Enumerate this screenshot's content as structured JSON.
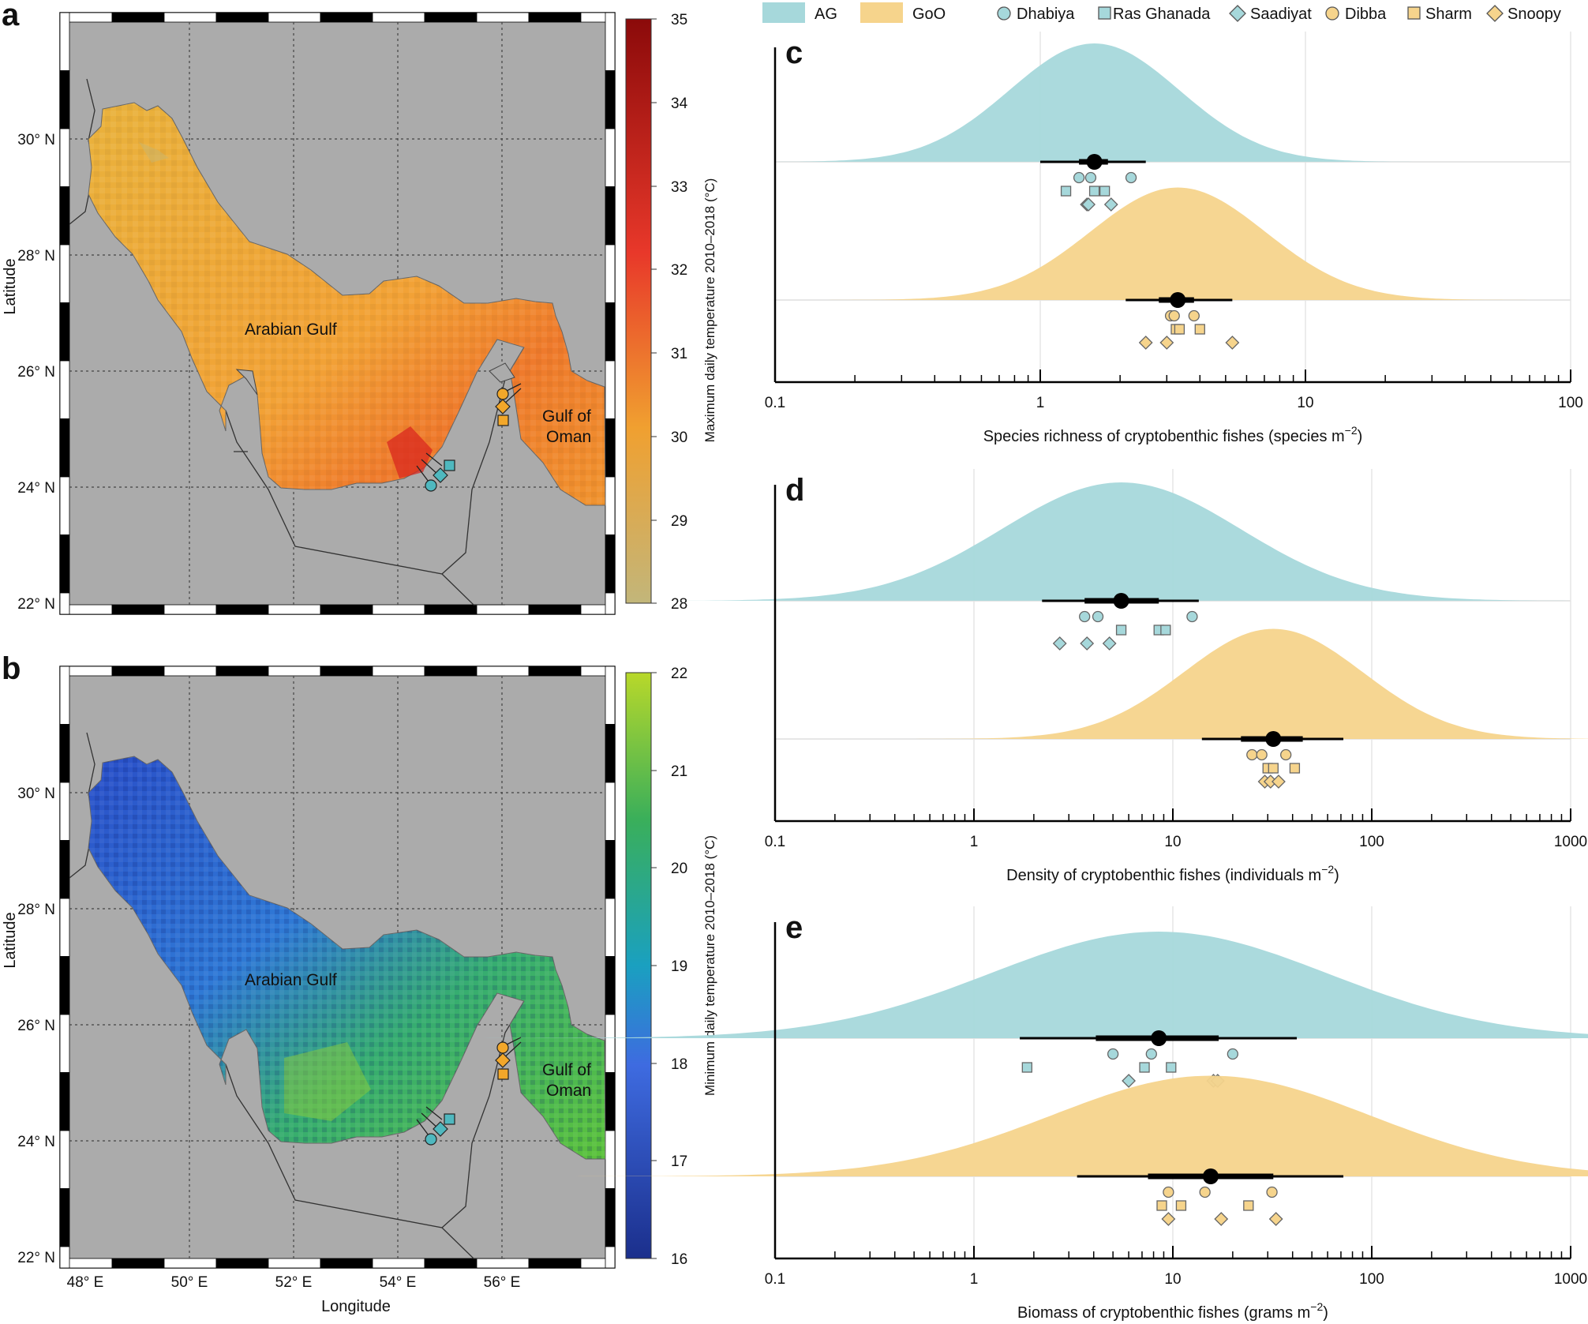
{
  "figure": {
    "panels": {
      "a": "a",
      "b": "b",
      "c": "c",
      "d": "d",
      "e": "e"
    },
    "legend": {
      "regions": [
        {
          "name": "AG",
          "color": "#a6d8db"
        },
        {
          "name": "GoO",
          "color": "#f6d48c"
        }
      ],
      "sites": [
        {
          "name": "Dhabiya",
          "shape": "circle"
        },
        {
          "name": "Ras Ghanada",
          "shape": "square"
        },
        {
          "name": "Saadiyat",
          "shape": "diamond"
        },
        {
          "name": "Dibba",
          "shape": "circle"
        },
        {
          "name": "Sharm",
          "shape": "square"
        },
        {
          "name": "Snoopy",
          "shape": "diamond"
        }
      ]
    },
    "maps": {
      "lat_ticks": [
        "30° N",
        "28° N",
        "26° N",
        "24° N",
        "22° N"
      ],
      "lon_ticks": [
        "48° E",
        "50° E",
        "52° E",
        "54° E",
        "56° E"
      ],
      "xlabel": "Longitude",
      "ylabel": "Latitude",
      "region_labels": {
        "ag": "Arabian Gulf",
        "goo_1": "Gulf of",
        "goo_2": "Oman"
      },
      "a": {
        "colorbar_title": "Maximum daily temperature 2010–2018 (°C)",
        "colorbar_ticks": [
          "35",
          "34",
          "33",
          "32",
          "31",
          "30",
          "29",
          "28"
        ],
        "colors": {
          "low": "#c2b67a",
          "mid": "#f0a030",
          "high": "#8b0a0a"
        }
      },
      "b": {
        "colorbar_title": "Minimum daily temperature 2010–2018 (°C)",
        "colorbar_ticks": [
          "22",
          "21",
          "20",
          "19",
          "18",
          "17",
          "16"
        ],
        "colors": {
          "low": "#1b2f8c",
          "mid": "#1aa0c0",
          "high": "#b8d82a"
        }
      }
    }
  },
  "chart_data": [
    {
      "type": "scatter",
      "panel": "c",
      "title": "",
      "xlabel": "Species richness of cryptobenthic fishes (species m",
      "xlabel_exp": "−2",
      "xlabel_tail": ")",
      "xscale": "log",
      "xlim": [
        0.1,
        100
      ],
      "ticks": [
        {
          "v": 0.1,
          "label": "0.1"
        },
        {
          "v": 1,
          "label": "1"
        },
        {
          "v": 10,
          "label": "10"
        },
        {
          "v": 100,
          "label": "100"
        }
      ],
      "series": [
        {
          "name": "AG",
          "color": "#a6d8db",
          "mean": 1.6,
          "ci50": [
            1.4,
            1.8
          ],
          "ci95": [
            1.0,
            2.5
          ],
          "dist_sd": 0.32,
          "dist_height": 1.0,
          "points": [
            {
              "site": "Dhabiya",
              "shape": "circle",
              "x": 1.4,
              "row": 0
            },
            {
              "site": "Dhabiya",
              "shape": "circle",
              "x": 1.55,
              "row": 0
            },
            {
              "site": "Dhabiya",
              "shape": "circle",
              "x": 2.2,
              "row": 0
            },
            {
              "site": "Ras Ghanada",
              "shape": "square",
              "x": 1.25,
              "row": 1
            },
            {
              "site": "Ras Ghanada",
              "shape": "square",
              "x": 1.6,
              "row": 1
            },
            {
              "site": "Ras Ghanada",
              "shape": "square",
              "x": 1.75,
              "row": 1
            },
            {
              "site": "Saadiyat",
              "shape": "diamond",
              "x": 1.5,
              "row": 2
            },
            {
              "site": "Saadiyat",
              "shape": "diamond",
              "x": 1.52,
              "row": 2
            },
            {
              "site": "Saadiyat",
              "shape": "diamond",
              "x": 1.85,
              "row": 2
            }
          ]
        },
        {
          "name": "GoO",
          "color": "#f6d48c",
          "mean": 3.3,
          "ci50": [
            2.8,
            3.8
          ],
          "ci95": [
            2.1,
            5.3
          ],
          "dist_sd": 0.33,
          "dist_height": 0.95,
          "points": [
            {
              "site": "Dibba",
              "shape": "circle",
              "x": 3.1,
              "row": 0
            },
            {
              "site": "Dibba",
              "shape": "circle",
              "x": 3.2,
              "row": 0
            },
            {
              "site": "Dibba",
              "shape": "circle",
              "x": 3.8,
              "row": 0
            },
            {
              "site": "Sharm",
              "shape": "square",
              "x": 3.25,
              "row": 1
            },
            {
              "site": "Sharm",
              "shape": "square",
              "x": 3.35,
              "row": 1
            },
            {
              "site": "Sharm",
              "shape": "square",
              "x": 4.0,
              "row": 1
            },
            {
              "site": "Snoopy",
              "shape": "diamond",
              "x": 2.5,
              "row": 2
            },
            {
              "site": "Snoopy",
              "shape": "diamond",
              "x": 3.0,
              "row": 2
            },
            {
              "site": "Snoopy",
              "shape": "diamond",
              "x": 5.3,
              "row": 2
            }
          ]
        }
      ]
    },
    {
      "type": "scatter",
      "panel": "d",
      "title": "",
      "xlabel": "Density of cryptobenthic fishes (individuals m",
      "xlabel_exp": "−2",
      "xlabel_tail": ")",
      "xscale": "log",
      "xlim": [
        0.1,
        1000
      ],
      "ticks": [
        {
          "v": 0.1,
          "label": "0.1"
        },
        {
          "v": 1,
          "label": "1"
        },
        {
          "v": 10,
          "label": "10"
        },
        {
          "v": 100,
          "label": "100"
        },
        {
          "v": 1000,
          "label": "1000"
        }
      ],
      "series": [
        {
          "name": "AG",
          "color": "#a6d8db",
          "mean": 5.5,
          "ci50": [
            3.6,
            8.5
          ],
          "ci95": [
            2.2,
            13.5
          ],
          "dist_sd": 0.6,
          "dist_height": 1.0,
          "points": [
            {
              "site": "Dhabiya",
              "shape": "circle",
              "x": 3.6,
              "row": 0
            },
            {
              "site": "Dhabiya",
              "shape": "circle",
              "x": 4.2,
              "row": 0
            },
            {
              "site": "Dhabiya",
              "shape": "circle",
              "x": 12.5,
              "row": 0
            },
            {
              "site": "Ras Ghanada",
              "shape": "square",
              "x": 5.5,
              "row": 1
            },
            {
              "site": "Ras Ghanada",
              "shape": "square",
              "x": 8.5,
              "row": 1
            },
            {
              "site": "Ras Ghanada",
              "shape": "square",
              "x": 9.2,
              "row": 1
            },
            {
              "site": "Saadiyat",
              "shape": "diamond",
              "x": 2.7,
              "row": 2
            },
            {
              "site": "Saadiyat",
              "shape": "diamond",
              "x": 3.7,
              "row": 2
            },
            {
              "site": "Saadiyat",
              "shape": "diamond",
              "x": 4.8,
              "row": 2
            }
          ]
        },
        {
          "name": "GoO",
          "color": "#f6d48c",
          "mean": 32,
          "ci50": [
            22,
            45
          ],
          "ci95": [
            14,
            72
          ],
          "dist_sd": 0.45,
          "dist_height": 0.93,
          "points": [
            {
              "site": "Dibba",
              "shape": "circle",
              "x": 25,
              "row": 0
            },
            {
              "site": "Dibba",
              "shape": "circle",
              "x": 28,
              "row": 0
            },
            {
              "site": "Dibba",
              "shape": "circle",
              "x": 37,
              "row": 0
            },
            {
              "site": "Sharm",
              "shape": "square",
              "x": 30,
              "row": 1
            },
            {
              "site": "Sharm",
              "shape": "square",
              "x": 32,
              "row": 1
            },
            {
              "site": "Sharm",
              "shape": "square",
              "x": 41,
              "row": 1
            },
            {
              "site": "Snoopy",
              "shape": "diamond",
              "x": 29,
              "row": 2
            },
            {
              "site": "Snoopy",
              "shape": "diamond",
              "x": 31,
              "row": 2
            },
            {
              "site": "Snoopy",
              "shape": "diamond",
              "x": 34,
              "row": 2
            }
          ]
        }
      ]
    },
    {
      "type": "scatter",
      "panel": "e",
      "title": "",
      "xlabel": "Biomass of cryptobenthic fishes (grams m",
      "xlabel_exp": "−2",
      "xlabel_tail": ")",
      "xscale": "log",
      "xlim": [
        0.1,
        1000
      ],
      "ticks": [
        {
          "v": 0.1,
          "label": "0.1"
        },
        {
          "v": 1,
          "label": "1"
        },
        {
          "v": 10,
          "label": "10"
        },
        {
          "v": 100,
          "label": "100"
        },
        {
          "v": 1000,
          "label": "1000"
        }
      ],
      "series": [
        {
          "name": "AG",
          "color": "#a6d8db",
          "mean": 8.5,
          "ci50": [
            4.1,
            17
          ],
          "ci95": [
            1.7,
            42
          ],
          "dist_sd": 0.85,
          "dist_height": 0.9,
          "points": [
            {
              "site": "Dhabiya",
              "shape": "circle",
              "x": 5.0,
              "row": 0
            },
            {
              "site": "Dhabiya",
              "shape": "circle",
              "x": 7.8,
              "row": 0
            },
            {
              "site": "Dhabiya",
              "shape": "circle",
              "x": 20,
              "row": 0
            },
            {
              "site": "Ras Ghanada",
              "shape": "square",
              "x": 1.85,
              "row": 1
            },
            {
              "site": "Ras Ghanada",
              "shape": "square",
              "x": 7.2,
              "row": 1
            },
            {
              "site": "Ras Ghanada",
              "shape": "square",
              "x": 9.8,
              "row": 1
            },
            {
              "site": "Saadiyat",
              "shape": "diamond",
              "x": 6.0,
              "row": 2
            },
            {
              "site": "Saadiyat",
              "shape": "diamond",
              "x": 16,
              "row": 2
            },
            {
              "site": "Saadiyat",
              "shape": "diamond",
              "x": 16.8,
              "row": 2
            }
          ]
        },
        {
          "name": "GoO",
          "color": "#f6d48c",
          "mean": 15.5,
          "ci50": [
            7.5,
            32
          ],
          "ci95": [
            3.3,
            72
          ],
          "dist_sd": 0.8,
          "dist_height": 0.85,
          "points": [
            {
              "site": "Dibba",
              "shape": "circle",
              "x": 9.5,
              "row": 0
            },
            {
              "site": "Dibba",
              "shape": "circle",
              "x": 14.5,
              "row": 0
            },
            {
              "site": "Dibba",
              "shape": "circle",
              "x": 31.5,
              "row": 0
            },
            {
              "site": "Sharm",
              "shape": "square",
              "x": 8.8,
              "row": 1
            },
            {
              "site": "Sharm",
              "shape": "square",
              "x": 11,
              "row": 1
            },
            {
              "site": "Sharm",
              "shape": "square",
              "x": 24,
              "row": 1
            },
            {
              "site": "Snoopy",
              "shape": "diamond",
              "x": 9.5,
              "row": 2
            },
            {
              "site": "Snoopy",
              "shape": "diamond",
              "x": 17.5,
              "row": 2
            },
            {
              "site": "Snoopy",
              "shape": "diamond",
              "x": 33,
              "row": 2
            }
          ]
        }
      ]
    }
  ]
}
